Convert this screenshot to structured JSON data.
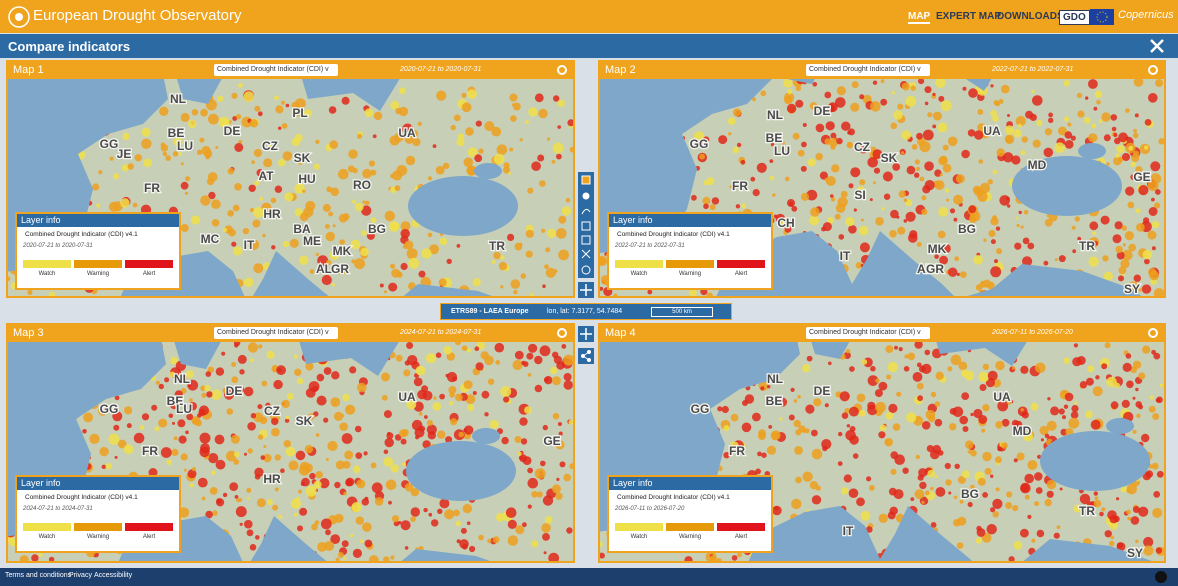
{
  "header": {
    "title": "European Drought Observatory",
    "nav": [
      "MAP",
      "EXPERT MAP",
      "DOWNLOADS",
      "GDO"
    ],
    "partner": "Copernicus"
  },
  "panel": {
    "title": "Compare indicators"
  },
  "maps": [
    {
      "title": "Map 1",
      "indicator": "Combined Drought Indicator (CDI) v",
      "period": "2020-07-21 to 2020-07-31",
      "layer_info": {
        "title": "Layer info",
        "layer": "Combined Drought Indicator (CDI) v4.1",
        "period": "2020-07-21 to 2020-07-31",
        "legend": [
          "Watch",
          "Warning",
          "Alert"
        ]
      },
      "labels": [
        "NL",
        "BE",
        "LU",
        "DE",
        "PL",
        "CZ",
        "SK",
        "UA",
        "AT",
        "HU",
        "RO",
        "FR",
        "GG",
        "JE",
        "HR",
        "BA",
        "ME",
        "BG",
        "MK",
        "AL",
        "GR",
        "TR",
        "IT",
        "MC"
      ]
    },
    {
      "title": "Map 2",
      "indicator": "Combined Drought Indicator (CDI) v",
      "period": "2022-07-21 to 2022-07-31",
      "layer_info": {
        "title": "Layer info",
        "layer": "Combined Drought Indicator (CDI) v4.1",
        "period": "2022-07-21 to 2022-07-31",
        "legend": [
          "Watch",
          "Warning",
          "Alert"
        ]
      },
      "labels": [
        "NL",
        "BE",
        "LU",
        "DE",
        "GG",
        "CZ",
        "SK",
        "UA",
        "MD",
        "GE",
        "FR",
        "CH",
        "SI",
        "MK",
        "AL",
        "GR",
        "BG",
        "TR",
        "SY",
        "IT"
      ]
    },
    {
      "title": "Map 3",
      "indicator": "Combined Drought Indicator (CDI) v",
      "period": "2024-07-21 to 2024-07-31",
      "layer_info": {
        "title": "Layer info",
        "layer": "Combined Drought Indicator (CDI) v4.1",
        "period": "2024-07-21 to 2024-07-31",
        "legend": [
          "Watch",
          "Warning",
          "Alert"
        ]
      },
      "labels": [
        "NL",
        "DE",
        "BE",
        "LU",
        "GG",
        "CZ",
        "SK",
        "UA",
        "FR",
        "GE",
        "HR"
      ]
    },
    {
      "title": "Map 4",
      "indicator": "Combined Drought Indicator (CDI) v",
      "period": "2026-07-11 to 2026-07-20",
      "layer_info": {
        "title": "Layer info",
        "layer": "Combined Drought Indicator (CDI) v4.1",
        "period": "2026-07-11 to 2026-07-20",
        "legend": [
          "Watch",
          "Warning",
          "Alert"
        ]
      },
      "labels": [
        "NL",
        "DE",
        "BE",
        "UA",
        "MD",
        "GG",
        "FR",
        "BG",
        "IT",
        "TR",
        "SY"
      ]
    }
  ],
  "projection": {
    "crs": "ETRS89 - LAEA Europe",
    "coords": "lon, lat: 7.3177, 54.7484",
    "scale": "500 km"
  },
  "footer": {
    "links": [
      "Terms and conditions",
      "Privacy",
      "Accessibility"
    ]
  }
}
